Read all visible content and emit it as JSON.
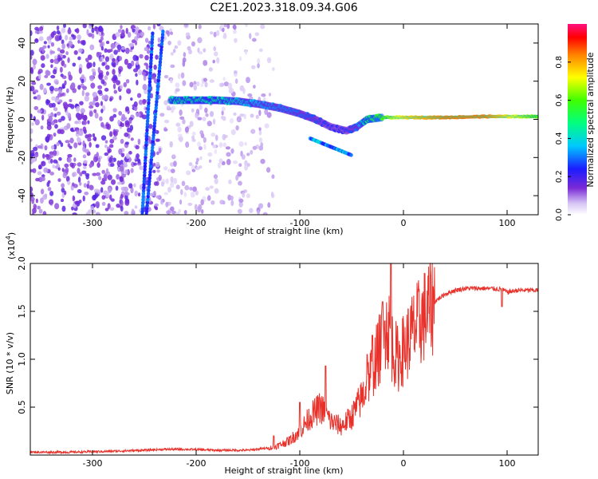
{
  "title": "C2E1.2023.318.09.34.G06",
  "colors": {
    "snr_line": "#e8312a",
    "scatter_noise": "#7a2bd6",
    "axis": "#000000",
    "background": "#ffffff"
  },
  "chart_data": [
    {
      "type": "heatmap",
      "name": "spectrogram",
      "xlabel": "Height of straight line (km)",
      "ylabel": "Frequency (Hz)",
      "xlim": [
        -360,
        130
      ],
      "ylim": [
        -50,
        50
      ],
      "xticks": [
        -300,
        -200,
        -100,
        0,
        100
      ],
      "yticks": [
        -40,
        -20,
        0,
        20,
        40
      ],
      "colorbar": {
        "label": "Normalized spectral amplitude",
        "range": [
          0,
          1
        ],
        "ticks": [
          "0.0",
          "0.2",
          "0.4",
          "0.6",
          "0.8"
        ],
        "colormap": "rainbow"
      },
      "grid": false,
      "features": {
        "track_1": {
          "x": [
            -252,
            -242
          ],
          "y": [
            -50,
            45
          ]
        },
        "track_2": {
          "x": [
            -248,
            -232
          ],
          "y": [
            -50,
            46
          ]
        },
        "main_signal": {
          "x": [
            -225,
            -200,
            -180,
            -160,
            -140,
            -120,
            -100,
            -85,
            -70,
            -55,
            -45,
            -35,
            -20,
            0,
            40,
            80,
            130
          ],
          "y": [
            10,
            10,
            10,
            9.5,
            8,
            6,
            3,
            0,
            -4,
            -6,
            -4,
            0,
            1,
            1,
            1,
            1.5,
            1.5
          ],
          "amplitude": [
            0.45,
            0.45,
            0.45,
            0.4,
            0.35,
            0.32,
            0.3,
            0.28,
            0.25,
            0.25,
            0.3,
            0.5,
            0.6,
            0.75,
            0.85,
            0.85,
            0.6
          ]
        }
      }
    },
    {
      "type": "line",
      "name": "snr",
      "xlabel": "Height of straight line (km)",
      "ylabel": "SNR (10 * v/v)",
      "yscale_label": "(x10",
      "yscale_exp": "4",
      "xlim": [
        -360,
        130
      ],
      "ylim": [
        0,
        2.0
      ],
      "xticks": [
        -300,
        -200,
        -100,
        0,
        100
      ],
      "yticks": [
        "0.5",
        "1.0",
        "1.5",
        "2.0"
      ],
      "grid": false,
      "series": [
        {
          "x": [
            -360,
            -320,
            -280,
            -250,
            -230,
            -210,
            -180,
            -150,
            -125,
            -110,
            -100,
            -90,
            -80,
            -70,
            -60,
            -50,
            -40,
            -30,
            -20,
            -15,
            -10,
            -5,
            0,
            5,
            10,
            20,
            30,
            40,
            50,
            60,
            80,
            95,
            100,
            110,
            130
          ],
          "y": [
            0.03,
            0.03,
            0.04,
            0.05,
            0.06,
            0.06,
            0.05,
            0.05,
            0.08,
            0.15,
            0.25,
            0.4,
            0.5,
            0.35,
            0.3,
            0.4,
            0.6,
            0.9,
            1.2,
            1.35,
            1.1,
            1.0,
            1.1,
            1.2,
            1.3,
            1.45,
            1.6,
            1.68,
            1.72,
            1.74,
            1.74,
            1.73,
            1.7,
            1.72,
            1.72
          ],
          "peaks": {
            "x": [
              -125,
              -100,
              -75,
              -35,
              -30,
              -20,
              -18,
              -12,
              95
            ],
            "y": [
              0.2,
              0.55,
              0.93,
              1.05,
              1.25,
              1.6,
              1.4,
              2.0,
              1.55
            ]
          }
        }
      ]
    }
  ]
}
